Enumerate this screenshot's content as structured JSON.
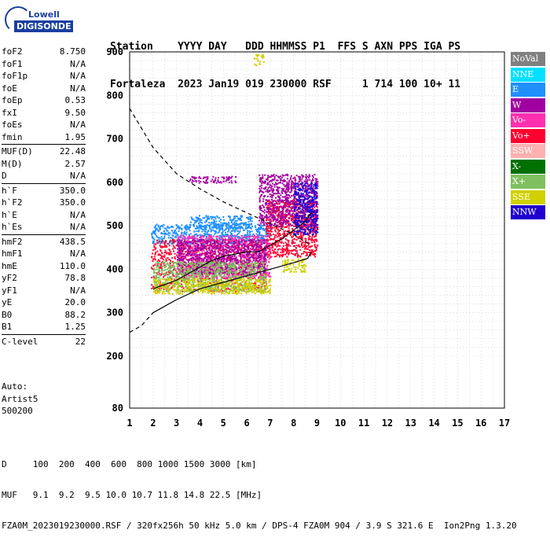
{
  "logo": {
    "line1": "Lowell",
    "line2": "DIGISONDE"
  },
  "header": {
    "line1": "Station    YYYY DAY   DDD HHMMSS P1  FFS S AXN PPS IGA PS",
    "line2": "Fortaleza  2023 Jan19 019 230000 RSF     1 714 100 10+ 11"
  },
  "params": [
    [
      {
        "k": "foF2",
        "v": "8.750"
      },
      {
        "k": "foF1",
        "v": "N/A"
      },
      {
        "k": "foF1p",
        "v": "N/A"
      },
      {
        "k": "foE",
        "v": "N/A"
      },
      {
        "k": "foEp",
        "v": "0.53"
      },
      {
        "k": "fxI",
        "v": "9.50"
      },
      {
        "k": "foEs",
        "v": "N/A"
      },
      {
        "k": "fmin",
        "v": "1.95"
      }
    ],
    [
      {
        "k": "MUF(D)",
        "v": "22.48"
      },
      {
        "k": "M(D)",
        "v": "2.57"
      },
      {
        "k": "D",
        "v": "N/A"
      }
    ],
    [
      {
        "k": "h`F",
        "v": "350.0"
      },
      {
        "k": "h`F2",
        "v": "350.0"
      },
      {
        "k": "h`E",
        "v": "N/A"
      },
      {
        "k": "h`Es",
        "v": "N/A"
      }
    ],
    [
      {
        "k": "hmF2",
        "v": "438.5"
      },
      {
        "k": "hmF1",
        "v": "N/A"
      },
      {
        "k": "hmE",
        "v": "110.0"
      },
      {
        "k": "yF2",
        "v": "78.8"
      },
      {
        "k": "yF1",
        "v": "N/A"
      },
      {
        "k": "yE",
        "v": "20.0"
      },
      {
        "k": "B0",
        "v": "88.2"
      },
      {
        "k": "B1",
        "v": "1.25"
      }
    ],
    [
      {
        "k": "C-level",
        "v": "22"
      }
    ]
  ],
  "auto": {
    "l1": "Auto:",
    "l2": "Artist5",
    "l3": "500200"
  },
  "legend": [
    {
      "label": "NoVal",
      "color": "#808080"
    },
    {
      "label": "NNE",
      "color": "#00e0ff"
    },
    {
      "label": "E",
      "color": "#2090ff"
    },
    {
      "label": "W",
      "color": "#a000a0"
    },
    {
      "label": "Vo-",
      "color": "#ff30b0"
    },
    {
      "label": "Vo+",
      "color": "#ff0030"
    },
    {
      "label": "SSW",
      "color": "#ffb0b0"
    },
    {
      "label": "X-",
      "color": "#007000"
    },
    {
      "label": "X+",
      "color": "#80c060"
    },
    {
      "label": "SSE",
      "color": "#d0d000"
    },
    {
      "label": "NNW",
      "color": "#2000d0"
    }
  ],
  "footer": {
    "line1": "D     100  200  400  600  800 1000 1500 3000 [km]",
    "line2": "MUF   9.1  9.2  9.5 10.0 10.7 11.8 14.8 22.5 [MHz]",
    "line3": "FZA0M_2023019230000.RSF / 320fx256h 50 kHz 5.0 km / DPS-4 FZA0M 904 / 3.9 S 321.6 E  Ion2Png 1.3.20"
  },
  "chart_data": {
    "type": "scatter",
    "xlim": [
      1,
      17
    ],
    "ylim": [
      80,
      900
    ],
    "x_ticks": [
      1,
      2,
      3,
      4,
      5,
      6,
      7,
      8,
      9,
      10,
      11,
      12,
      13,
      14,
      15,
      16,
      17
    ],
    "y_ticks": [
      80,
      200,
      300,
      400,
      500,
      600,
      700,
      800,
      900
    ],
    "grid": true,
    "trace_profile": [
      [
        2.0,
        355
      ],
      [
        2.5,
        365
      ],
      [
        3.0,
        375
      ],
      [
        3.5,
        390
      ],
      [
        4.0,
        405
      ],
      [
        4.5,
        420
      ],
      [
        5.0,
        430
      ],
      [
        5.5,
        435
      ],
      [
        6.0,
        440
      ],
      [
        6.5,
        440
      ],
      [
        7.0,
        455
      ],
      [
        7.5,
        470
      ],
      [
        8.0,
        490
      ],
      [
        8.5,
        510
      ],
      [
        8.75,
        530
      ]
    ],
    "profile_solid": [
      [
        2.0,
        300
      ],
      [
        3.0,
        330
      ],
      [
        4.0,
        355
      ],
      [
        5.0,
        370
      ],
      [
        6.0,
        385
      ],
      [
        7.0,
        400
      ],
      [
        8.0,
        415
      ],
      [
        8.6,
        425
      ],
      [
        8.75,
        440
      ]
    ],
    "profile_dashed_lower": [
      [
        1.0,
        255
      ],
      [
        1.5,
        270
      ],
      [
        2.0,
        300
      ]
    ],
    "profile_dashed_upper": [
      [
        1.0,
        770
      ],
      [
        2.0,
        680
      ],
      [
        3.0,
        620
      ],
      [
        4.0,
        585
      ],
      [
        5.0,
        555
      ],
      [
        6.0,
        530
      ],
      [
        7.0,
        505
      ],
      [
        8.0,
        480
      ],
      [
        8.75,
        455
      ]
    ],
    "point_clusters": [
      {
        "series": "E",
        "x": [
          1.9,
          7.0
        ],
        "y": [
          460,
          505
        ]
      },
      {
        "series": "E",
        "x": [
          3.5,
          6.2
        ],
        "y": [
          495,
          525
        ]
      },
      {
        "series": "Vo+",
        "x": [
          1.9,
          6.8
        ],
        "y": [
          350,
          470
        ]
      },
      {
        "series": "Vo+",
        "x": [
          6.8,
          9.0
        ],
        "y": [
          430,
          560
        ]
      },
      {
        "series": "Vo-",
        "x": [
          3.0,
          7.0
        ],
        "y": [
          380,
          480
        ]
      },
      {
        "series": "W",
        "x": [
          3.0,
          6.8
        ],
        "y": [
          390,
          470
        ]
      },
      {
        "series": "W",
        "x": [
          6.5,
          9.0
        ],
        "y": [
          500,
          620
        ]
      },
      {
        "series": "X+",
        "x": [
          2.0,
          6.8
        ],
        "y": [
          350,
          420
        ]
      },
      {
        "series": "SSE",
        "x": [
          2.0,
          7.0
        ],
        "y": [
          345,
          380
        ]
      },
      {
        "series": "SSE",
        "x": [
          7.5,
          8.5
        ],
        "y": [
          395,
          425
        ]
      },
      {
        "series": "NNW",
        "x": [
          8.0,
          9.0
        ],
        "y": [
          480,
          600
        ]
      },
      {
        "series": "W",
        "x": [
          3.5,
          5.5
        ],
        "y": [
          600,
          615
        ]
      },
      {
        "series": "SSE",
        "x": [
          6.3,
          6.7
        ],
        "y": [
          870,
          895
        ]
      }
    ]
  }
}
